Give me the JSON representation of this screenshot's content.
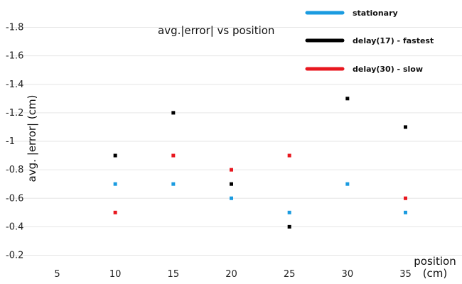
{
  "chart_data": {
    "type": "scatter",
    "title": "avg.|error| vs position",
    "xlabel_line1": "position",
    "xlabel_line2": "(cm)",
    "ylabel": "avg. |error| (cm)",
    "xlim": [
      0,
      40
    ],
    "ylim": [
      0.1,
      1.9
    ],
    "x_ticks": [
      5,
      10,
      15,
      20,
      25,
      30,
      35
    ],
    "x_tick_labels": [
      "5",
      "10",
      "15",
      "20",
      "25",
      "30",
      "35"
    ],
    "y_ticks": [
      0.2,
      0.4,
      0.6,
      0.8,
      1.0,
      1.2,
      1.4,
      1.6,
      1.8
    ],
    "y_tick_labels": [
      "0.2",
      "0.4",
      "0.6",
      "0.8",
      "1",
      "1.2",
      "1.4",
      "1.6",
      "1.8"
    ],
    "grid": "horizontal",
    "legend_position": "top-right",
    "series": [
      {
        "name": "stationary",
        "color": "#1a9be0",
        "points": [
          [
            10,
            0.7
          ],
          [
            15,
            0.7
          ],
          [
            20,
            0.6
          ],
          [
            25,
            0.5
          ],
          [
            30,
            0.7
          ],
          [
            35,
            0.5
          ]
        ]
      },
      {
        "name": "delay(17) - fastest",
        "color": "#000000",
        "points": [
          [
            10,
            0.9
          ],
          [
            15,
            1.2
          ],
          [
            20,
            0.7
          ],
          [
            25,
            0.4
          ],
          [
            30,
            1.3
          ],
          [
            35,
            1.1
          ]
        ]
      },
      {
        "name": "delay(30) - slow",
        "color": "#e8171f",
        "points": [
          [
            10,
            0.5
          ],
          [
            15,
            0.9
          ],
          [
            20,
            0.8
          ],
          [
            25,
            0.9
          ],
          [
            35,
            0.6
          ]
        ]
      }
    ]
  }
}
